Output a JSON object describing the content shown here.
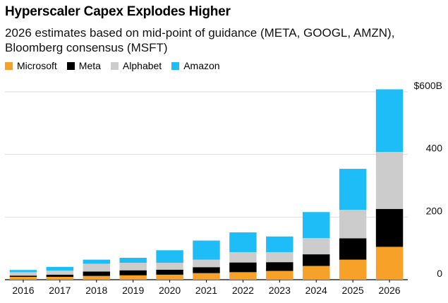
{
  "chart_data": {
    "type": "bar",
    "stacked": true,
    "title": "Hyperscaler Capex Explodes Higher",
    "subtitle": "2026 estimates based on mid-point of guidance (META, GOOGL, AMZN), Bloomberg consensus (MSFT)",
    "categories": [
      "2016",
      "2017",
      "2018",
      "2019",
      "2020",
      "2021",
      "2022",
      "2023",
      "2024",
      "2025",
      "2026"
    ],
    "series": [
      {
        "name": "Microsoft",
        "color": "#f7a128",
        "values": [
          9,
          9,
          12,
          14,
          16,
          21,
          24,
          28,
          44,
          64,
          105
        ]
      },
      {
        "name": "Meta",
        "color": "#000000",
        "values": [
          4,
          7,
          14,
          16,
          16,
          19,
          31,
          28,
          37,
          68,
          121
        ]
      },
      {
        "name": "Alphabet",
        "color": "#cccccc",
        "values": [
          11,
          13,
          25,
          24,
          22,
          24,
          33,
          32,
          52,
          91,
          182
        ]
      },
      {
        "name": "Amazon",
        "color": "#1ebdf7",
        "values": [
          7,
          12,
          13,
          16,
          40,
          61,
          63,
          50,
          83,
          131,
          200
        ]
      }
    ],
    "ylim": [
      0,
      600
    ],
    "yticks": [
      0,
      200,
      400,
      600
    ],
    "ytick_labels": [
      "0",
      "200",
      "400",
      "$600B"
    ],
    "grid": true,
    "legend_position": "top-left"
  }
}
